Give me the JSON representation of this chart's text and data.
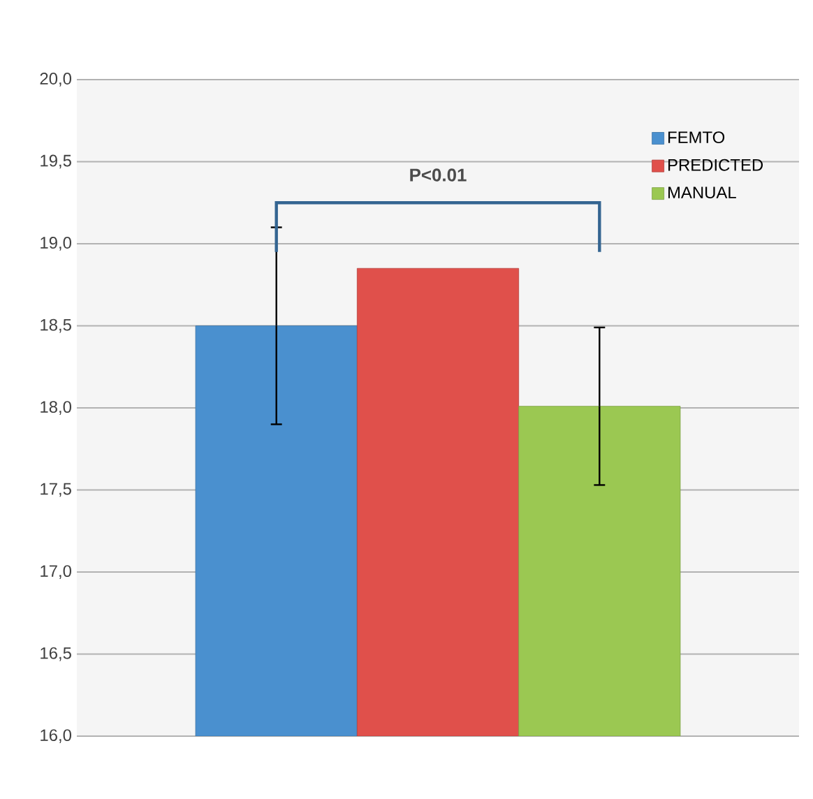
{
  "chart_data": {
    "type": "bar",
    "categories": [
      null
    ],
    "series": [
      {
        "name": "FEMTO",
        "color": "#4a90cf",
        "values": [
          18.5
        ],
        "errors": [
          0.6
        ]
      },
      {
        "name": "PREDICTED",
        "color": "#e0504b",
        "values": [
          18.85
        ],
        "errors": [
          null
        ]
      },
      {
        "name": "MANUAL",
        "color": "#9bc852",
        "values": [
          18.01
        ],
        "errors": [
          0.48
        ]
      }
    ],
    "ylim": [
      16,
      20
    ],
    "yticks": [
      {
        "value": 16,
        "label": "16,0"
      },
      {
        "value": 16.5,
        "label": "16,5"
      },
      {
        "value": 17,
        "label": "17,0"
      },
      {
        "value": 17.5,
        "label": "17,5"
      },
      {
        "value": 18,
        "label": "18,0"
      },
      {
        "value": 18.5,
        "label": "18,5"
      },
      {
        "value": 19,
        "label": "19,0"
      },
      {
        "value": 19.5,
        "label": "19,5"
      },
      {
        "value": 20,
        "label": "20,0"
      }
    ],
    "tick_labels": "y",
    "grid": "y",
    "legend": "top right",
    "annotations": [
      "P<0.01"
    ]
  }
}
